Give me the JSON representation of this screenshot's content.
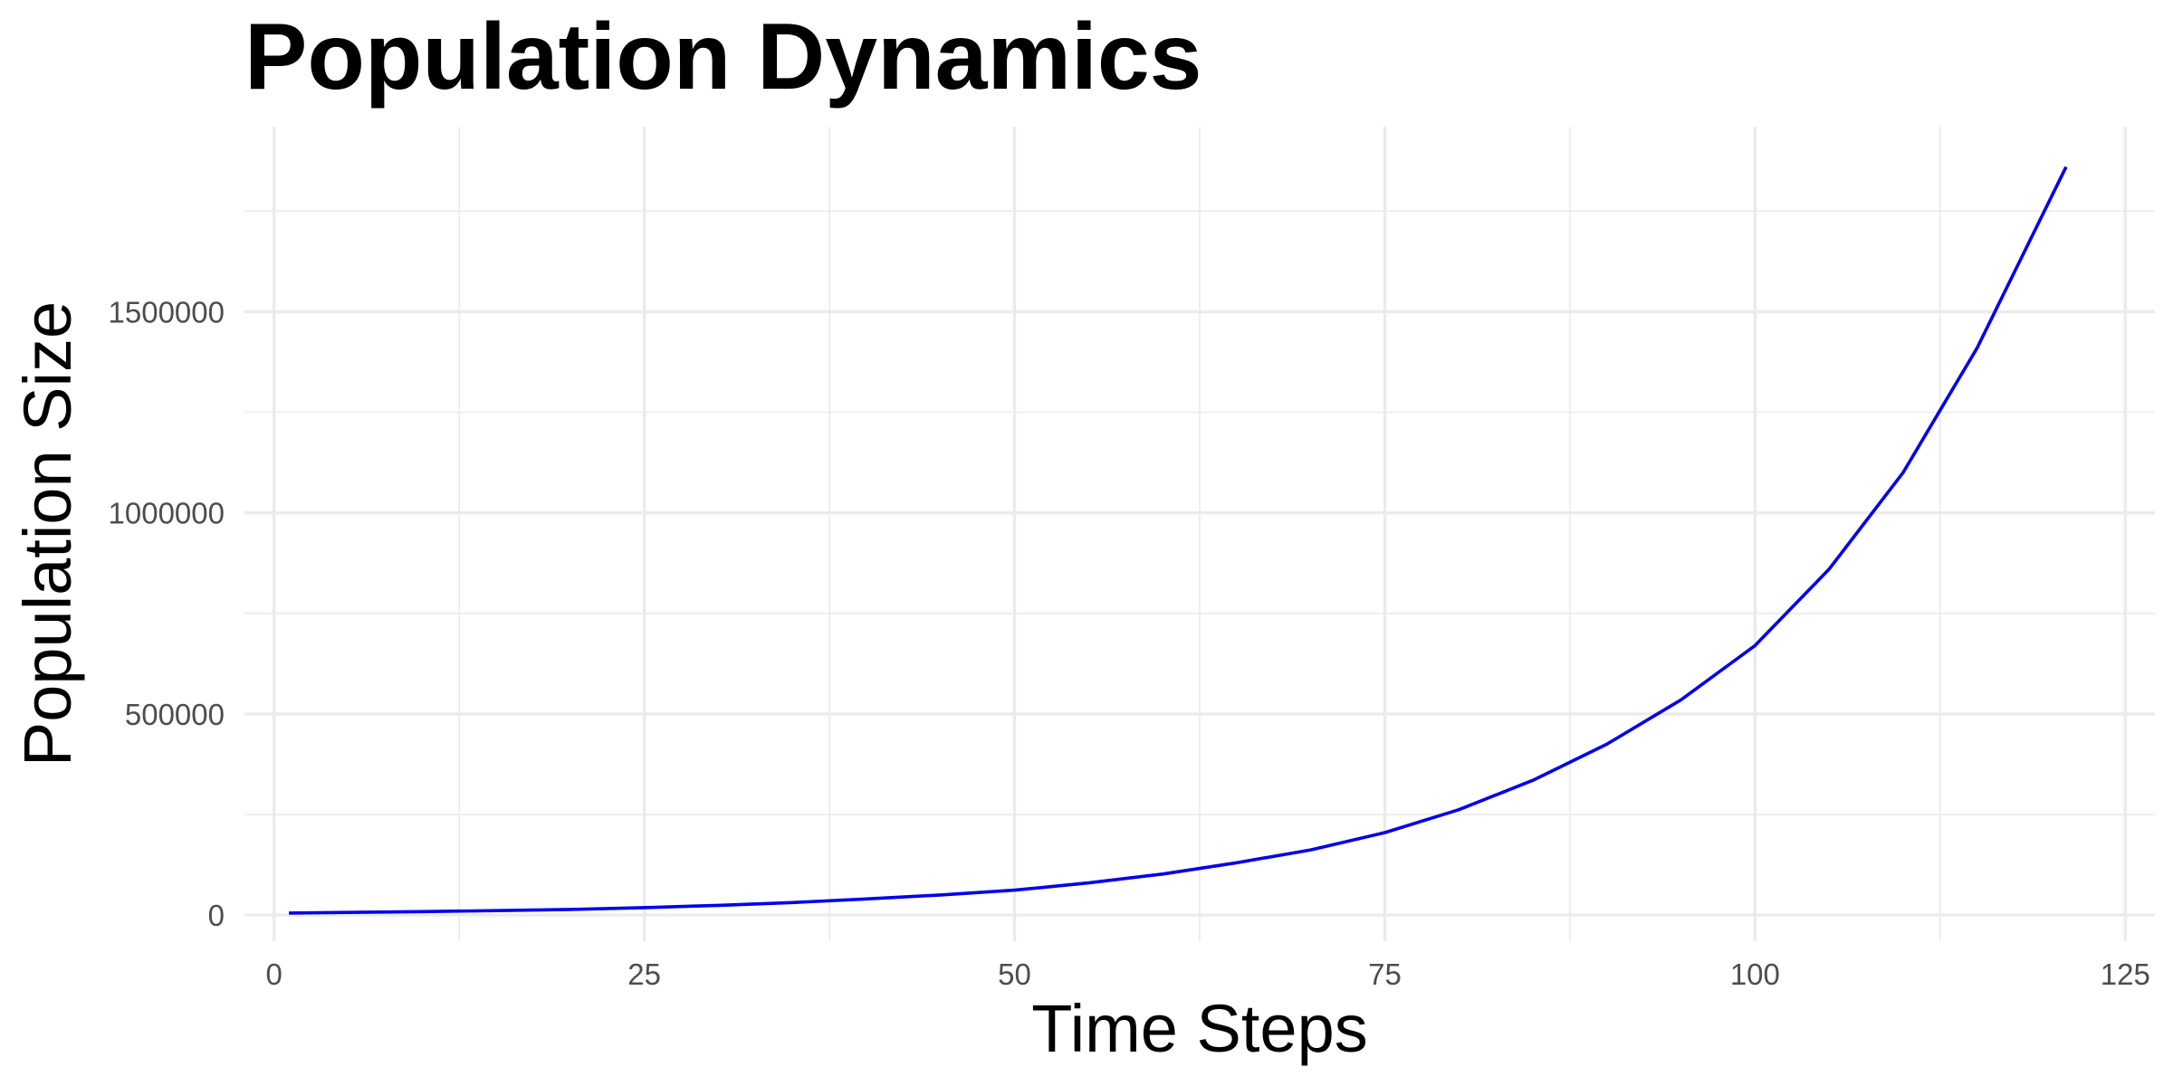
{
  "chart_data": {
    "type": "line",
    "title": "Population Dynamics",
    "xlabel": "Time Steps",
    "ylabel": "Population Size",
    "xlim": [
      -2,
      127
    ],
    "ylim": [
      -65000,
      1960000
    ],
    "x_ticks": [
      0,
      25,
      50,
      75,
      100,
      125
    ],
    "x_tick_labels": [
      "0",
      "25",
      "50",
      "75",
      "100",
      "125"
    ],
    "y_ticks": [
      0,
      500000,
      1000000,
      1500000
    ],
    "y_tick_labels": [
      "0",
      "500000",
      "1000000",
      "1500000"
    ],
    "grid": true,
    "legend": "none",
    "series": [
      {
        "color": "#0000ee",
        "x": [
          1,
          5,
          10,
          15,
          20,
          25,
          30,
          35,
          40,
          45,
          50,
          55,
          60,
          65,
          70,
          75,
          80,
          85,
          90,
          95,
          100,
          105,
          110,
          115,
          121
        ],
        "values": [
          5000,
          6500,
          8500,
          11000,
          14000,
          18500,
          24000,
          31000,
          40000,
          50000,
          62000,
          80000,
          102000,
          130000,
          162000,
          205000,
          262000,
          335000,
          425000,
          535000,
          670000,
          860000,
          1100000,
          1410000,
          1860000
        ]
      }
    ]
  }
}
